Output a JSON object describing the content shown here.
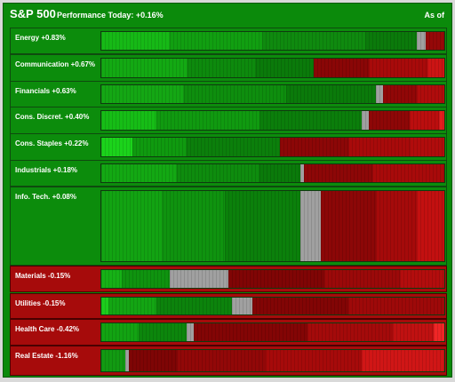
{
  "header": {
    "title": "S&P 500",
    "subtitle": "Performance Today: +0.16%",
    "as_of": "As of"
  },
  "colors": {
    "frame_green": "#0b8a0b",
    "positive_panel": "#0c8c0c",
    "negative_panel": "#a60b0b",
    "unchanged_gray": "#9e9e9e"
  },
  "sectors": [
    {
      "label": "Energy  +0.83%",
      "sign": "pos",
      "segments": [
        {
          "color": "#16b916",
          "share": 0.2
        },
        {
          "color": "#119f11",
          "share": 0.27
        },
        {
          "color": "#0f8a0f",
          "share": 0.3
        },
        {
          "color": "#0b7a0b",
          "share": 0.15
        },
        {
          "color": "#a0a0a0",
          "share": 0.025
        },
        {
          "color": "#950808",
          "share": 0.055
        }
      ]
    },
    {
      "label": "Communication  +0.67%",
      "sign": "pos",
      "segments": [
        {
          "color": "#13a913",
          "share": 0.25
        },
        {
          "color": "#0d8a0d",
          "share": 0.2
        },
        {
          "color": "#0a7a0a",
          "share": 0.17
        },
        {
          "color": "#8a0606",
          "share": 0.16
        },
        {
          "color": "#a80a0a",
          "share": 0.17
        },
        {
          "color": "#cc1414",
          "share": 0.05
        }
      ]
    },
    {
      "label": "Financials  +0.63%",
      "sign": "pos",
      "segments": [
        {
          "color": "#14a714",
          "share": 0.24
        },
        {
          "color": "#0e8e0e",
          "share": 0.3
        },
        {
          "color": "#0a7a0a",
          "share": 0.26
        },
        {
          "color": "#a0a0a0",
          "share": 0.02
        },
        {
          "color": "#910707",
          "share": 0.1
        },
        {
          "color": "#b00c0c",
          "share": 0.08
        }
      ]
    },
    {
      "label": "Cons. Discret.  +0.40%",
      "sign": "pos",
      "segments": [
        {
          "color": "#16bd16",
          "share": 0.16
        },
        {
          "color": "#109a10",
          "share": 0.3
        },
        {
          "color": "#0b7e0b",
          "share": 0.3
        },
        {
          "color": "#a0a0a0",
          "share": 0.02
        },
        {
          "color": "#8e0707",
          "share": 0.12
        },
        {
          "color": "#bb0e0e",
          "share": 0.085
        },
        {
          "color": "#e41d1d",
          "share": 0.015
        }
      ]
    },
    {
      "label": "Cons. Staples  +0.22%",
      "sign": "pos",
      "segments": [
        {
          "color": "#1bd31b",
          "share": 0.09
        },
        {
          "color": "#0f9a0f",
          "share": 0.16
        },
        {
          "color": "#0b7f0b",
          "share": 0.27
        },
        {
          "color": "#8c0707",
          "share": 0.2
        },
        {
          "color": "#a80a0a",
          "share": 0.18
        },
        {
          "color": "#b10c0c",
          "share": 0.1
        }
      ]
    },
    {
      "label": "Industrials  +0.18%",
      "sign": "pos",
      "segments": [
        {
          "color": "#13a813",
          "share": 0.22
        },
        {
          "color": "#0e8c0e",
          "share": 0.24
        },
        {
          "color": "#0a7a0a",
          "share": 0.12
        },
        {
          "color": "#a0a0a0",
          "share": 0.01
        },
        {
          "color": "#8d0707",
          "share": 0.2
        },
        {
          "color": "#a80a0a",
          "share": 0.21
        }
      ]
    },
    {
      "label": "Info. Tech.  +0.08%",
      "sign": "pos",
      "segments": [
        {
          "color": "#12a312",
          "share": 0.18
        },
        {
          "color": "#0f930f",
          "share": 0.18
        },
        {
          "color": "#0b800b",
          "share": 0.22
        },
        {
          "color": "#a0a0a0",
          "share": 0.06
        },
        {
          "color": "#8c0707",
          "share": 0.16
        },
        {
          "color": "#a50a0a",
          "share": 0.12
        },
        {
          "color": "#c31010",
          "share": 0.08
        }
      ]
    },
    {
      "label": "Materials  -0.15%",
      "sign": "neg",
      "segments": [
        {
          "color": "#16b116",
          "share": 0.06
        },
        {
          "color": "#0f930f",
          "share": 0.14
        },
        {
          "color": "#a0a0a0",
          "share": 0.17
        },
        {
          "color": "#800505",
          "share": 0.28
        },
        {
          "color": "#9b0909",
          "share": 0.22
        },
        {
          "color": "#b30d0d",
          "share": 0.13
        }
      ]
    },
    {
      "label": "Utilities  -0.15%",
      "sign": "neg",
      "segments": [
        {
          "color": "#1ccd1c",
          "share": 0.02
        },
        {
          "color": "#13a513",
          "share": 0.14
        },
        {
          "color": "#0c830c",
          "share": 0.22
        },
        {
          "color": "#a0a0a0",
          "share": 0.06
        },
        {
          "color": "#820505",
          "share": 0.28
        },
        {
          "color": "#9e0909",
          "share": 0.28
        }
      ]
    },
    {
      "label": "Health Care  -0.42%",
      "sign": "neg",
      "segments": [
        {
          "color": "#12a312",
          "share": 0.11
        },
        {
          "color": "#0c860c",
          "share": 0.14
        },
        {
          "color": "#a0a0a0",
          "share": 0.02
        },
        {
          "color": "#830505",
          "share": 0.33
        },
        {
          "color": "#a40a0a",
          "share": 0.25
        },
        {
          "color": "#c01111",
          "share": 0.12
        },
        {
          "color": "#ef2626",
          "share": 0.03
        }
      ]
    },
    {
      "label": "Real Estate  -1.16%",
      "sign": "neg",
      "segments": [
        {
          "color": "#129a12",
          "share": 0.07
        },
        {
          "color": "#a0a0a0",
          "share": 0.01
        },
        {
          "color": "#7e0505",
          "share": 0.14
        },
        {
          "color": "#920808",
          "share": 0.26
        },
        {
          "color": "#a60a0a",
          "share": 0.28
        },
        {
          "color": "#d01616",
          "share": 0.24
        }
      ]
    }
  ]
}
